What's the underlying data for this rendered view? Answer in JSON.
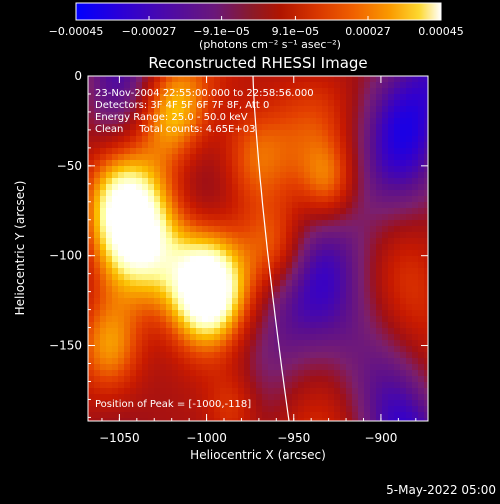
{
  "chart_data": {
    "type": "heatmap",
    "title": "Reconstructed RHESSI Image",
    "xlabel": "Heliocentric X (arcsec)",
    "ylabel": "Heliocentric Y (arcsec)",
    "xlim": [
      -1068,
      -873
    ],
    "ylim": [
      -192,
      0
    ],
    "x_ticks": [
      -1050,
      -1000,
      -950,
      -900
    ],
    "x_tick_labels": [
      "−1050",
      "−1000",
      "−950",
      "−900"
    ],
    "y_ticks": [
      0,
      -50,
      -100,
      -150
    ],
    "y_tick_labels": [
      "0",
      "−50",
      "−100",
      "−150"
    ],
    "colorbar": {
      "range": [
        -0.00045,
        0.00045
      ],
      "ticks": [
        -0.00045,
        -0.00027,
        -9.1e-05,
        9.1e-05,
        0.00027,
        0.00045
      ],
      "tick_labels": [
        "−0.00045",
        "−0.00027",
        "−9.1e−05",
        "9.1e−05",
        "0.00027",
        "0.00045"
      ],
      "label": "(photons cm⁻² s⁻¹ asec⁻²)",
      "colormap": [
        "#0000ff",
        "#3300cc",
        "#5a0e8f",
        "#7a1f6f",
        "#a01015",
        "#c81a00",
        "#e44000",
        "#f48000",
        "#fcc000",
        "#ffffa0",
        "#ffffff"
      ]
    },
    "annotations": [
      "23-Nov-2004 22:55:00.000 to 22:58:56.000",
      "Detectors: 3F 4F 5F 6F 7F 8F, Att 0",
      "Energy Range: 25.0 - 50.0 keV",
      "Clean     Total counts: 4.65E+03"
    ],
    "peak_text": "Position of Peak = [-1000,-118]",
    "peak_position": [
      -1000,
      -118
    ],
    "limb_color": "#ffffff"
  },
  "footer_date": "5-May-2022 05:00"
}
